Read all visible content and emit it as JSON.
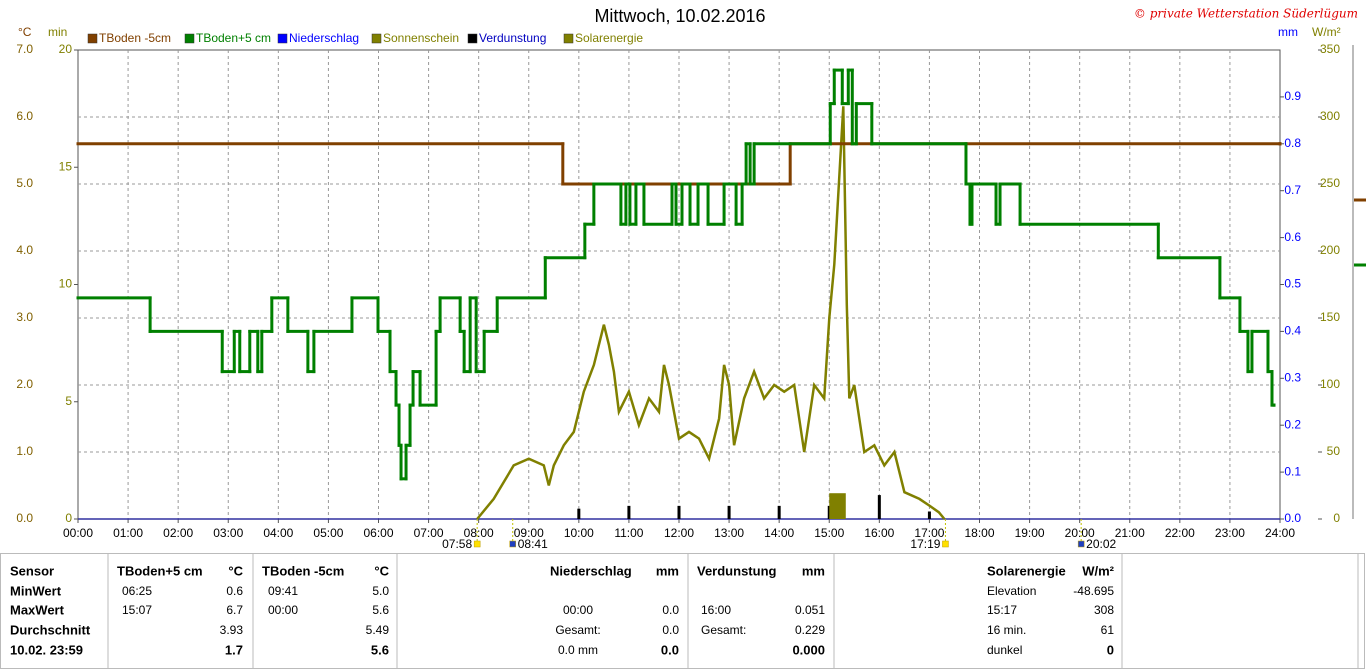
{
  "chart_data": {
    "type": "line",
    "title": "Mittwoch, 10.02.2016",
    "credit": "© private Wetterstation Süderlügum",
    "xlim": [
      0,
      24
    ],
    "xticks": [
      {
        "value": 0,
        "label": "00:00"
      },
      {
        "value": 1,
        "label": "01:00"
      },
      {
        "value": 2,
        "label": "02:00"
      },
      {
        "value": 3,
        "label": "03:00"
      },
      {
        "value": 4,
        "label": "04:00"
      },
      {
        "value": 5,
        "label": "05:00"
      },
      {
        "value": 6,
        "label": "06:00"
      },
      {
        "value": 7,
        "label": "07:00"
      },
      {
        "value": 8,
        "label": "08:00"
      },
      {
        "value": 9,
        "label": "09:00"
      },
      {
        "value": 10,
        "label": "10:00"
      },
      {
        "value": 11,
        "label": "11:00"
      },
      {
        "value": 12,
        "label": "12:00"
      },
      {
        "value": 13,
        "label": "13:00"
      },
      {
        "value": 14,
        "label": "14:00"
      },
      {
        "value": 15,
        "label": "15:00"
      },
      {
        "value": 16,
        "label": "16:00"
      },
      {
        "value": 17,
        "label": "17:00"
      },
      {
        "value": 18,
        "label": "18:00"
      },
      {
        "value": 19,
        "label": "19:00"
      },
      {
        "value": 20,
        "label": "20:00"
      },
      {
        "value": 21,
        "label": "21:00"
      },
      {
        "value": 22,
        "label": "22:00"
      },
      {
        "value": 23,
        "label": "23:00"
      },
      {
        "value": 24,
        "label": "24:00"
      }
    ],
    "ylabel": "°C",
    "ylim": [
      0,
      7
    ],
    "yticks": [
      {
        "value": 0,
        "label": "0.0"
      },
      {
        "value": 1,
        "label": "1.0"
      },
      {
        "value": 2,
        "label": "2.0"
      },
      {
        "value": 3,
        "label": "3.0"
      },
      {
        "value": 4,
        "label": "4.0"
      },
      {
        "value": 5,
        "label": "5.0"
      },
      {
        "value": 6,
        "label": "6.0"
      },
      {
        "value": 7,
        "label": "7.0"
      }
    ],
    "y3label": "min",
    "y3lim": [
      0,
      20
    ],
    "y3ticks": [
      0,
      5,
      10,
      15,
      20
    ],
    "y2label": "mm",
    "y2lim": [
      0,
      1
    ],
    "y2ticks": [
      {
        "value": 0,
        "label": "0.0"
      },
      0.1,
      0.2,
      0.3,
      0.4,
      0.5,
      0.6,
      0.7,
      0.8,
      0.9
    ],
    "y4label": "W/m²",
    "y4lim": [
      0,
      350
    ],
    "y4ticks": [
      0,
      50,
      100,
      150,
      200,
      250,
      300,
      350
    ],
    "grid": true,
    "series": [
      {
        "name": "TBoden -5cm",
        "color": "#804000",
        "axis": "y",
        "style": "step",
        "x": [
          0,
          9.68,
          14.22,
          24
        ],
        "values": [
          5.6,
          5.0,
          5.6,
          5.6
        ]
      },
      {
        "name": "TBoden+5 cm",
        "color": "#008000",
        "axis": "y",
        "style": "step",
        "x": [
          0,
          1.44,
          2.88,
          3.12,
          3.23,
          3.43,
          3.59,
          3.67,
          3.87,
          4.19,
          4.59,
          4.71,
          5.47,
          5.99,
          6.23,
          6.35,
          6.41,
          6.45,
          6.55,
          6.63,
          6.69,
          6.83,
          7.15,
          7.23,
          7.63,
          7.71,
          7.83,
          7.95,
          8.11,
          8.37,
          9.33,
          10.12,
          10.3,
          10.84,
          10.94,
          11.02,
          11.14,
          11.3,
          11.86,
          11.94,
          12.06,
          12.22,
          12.38,
          12.58,
          12.9,
          13.14,
          13.26,
          13.34,
          13.42,
          13.5,
          15.02,
          15.1,
          15.26,
          15.38,
          15.46,
          15.54,
          15.85,
          17.73,
          17.81,
          17.85,
          18.33,
          18.41,
          18.81,
          21.57,
          22.8,
          23.2,
          23.36,
          23.44,
          23.76,
          23.84,
          23.88
        ],
        "values": [
          3.3,
          2.8,
          2.2,
          2.8,
          2.2,
          2.8,
          2.2,
          2.8,
          3.3,
          2.8,
          2.2,
          2.8,
          3.3,
          2.8,
          2.2,
          1.7,
          1.1,
          0.6,
          1.1,
          1.7,
          2.2,
          1.7,
          2.8,
          3.3,
          2.8,
          2.2,
          3.3,
          2.2,
          2.8,
          3.3,
          3.9,
          4.4,
          5.0,
          4.4,
          5.0,
          4.4,
          5.0,
          4.4,
          5.0,
          4.4,
          5.0,
          4.4,
          5.0,
          4.4,
          5.0,
          4.4,
          5.0,
          5.6,
          5.0,
          5.6,
          6.2,
          6.7,
          6.2,
          6.7,
          5.6,
          6.2,
          5.6,
          5.0,
          4.4,
          5.0,
          4.4,
          5.0,
          4.4,
          3.9,
          3.3,
          2.8,
          2.2,
          2.8,
          2.2,
          1.7,
          1.7
        ]
      },
      {
        "name": "Niederschlag",
        "color": "#0000ff",
        "axis": "y2",
        "style": "bar",
        "x": [],
        "values": []
      },
      {
        "name": "Sonnenschein",
        "color": "#808000",
        "axis": "y3",
        "style": "hist",
        "bins": [
          15.0,
          15.33
        ],
        "values": [
          1.1
        ]
      },
      {
        "name": "Verdunstung",
        "color": "#000000",
        "axis": "y2",
        "style": "bar",
        "x": [
          10,
          11,
          12,
          13,
          14,
          15,
          16,
          17
        ],
        "values": [
          0.022,
          0.028,
          0.028,
          0.028,
          0.028,
          0.028,
          0.051,
          0.016
        ]
      },
      {
        "name": "Solarenergie",
        "color": "#808000",
        "axis": "y4",
        "style": "line",
        "x": [
          7.97,
          8.3,
          8.7,
          9.0,
          9.3,
          9.4,
          9.5,
          9.7,
          9.9,
          10.1,
          10.3,
          10.4,
          10.5,
          10.6,
          10.7,
          10.8,
          11.0,
          11.2,
          11.4,
          11.6,
          11.7,
          11.8,
          12.0,
          12.2,
          12.4,
          12.6,
          12.8,
          12.9,
          13.0,
          13.1,
          13.3,
          13.5,
          13.7,
          13.9,
          14.1,
          14.3,
          14.5,
          14.7,
          14.9,
          15.0,
          15.1,
          15.28,
          15.35,
          15.4,
          15.5,
          15.7,
          15.9,
          16.1,
          16.3,
          16.5,
          16.8,
          17.0,
          17.19,
          17.3
        ],
        "values": [
          0,
          15,
          40,
          45,
          40,
          25,
          40,
          55,
          65,
          95,
          115,
          130,
          145,
          130,
          110,
          80,
          95,
          70,
          90,
          80,
          115,
          100,
          60,
          65,
          60,
          45,
          75,
          115,
          100,
          55,
          90,
          110,
          90,
          100,
          95,
          100,
          50,
          100,
          90,
          150,
          190,
          308,
          160,
          90,
          100,
          50,
          55,
          40,
          50,
          20,
          15,
          10,
          5,
          0
        ]
      }
    ],
    "annotations": [
      {
        "x": 7.97,
        "label": "07:58"
      },
      {
        "x": 8.68,
        "label": "08:41"
      },
      {
        "x": 17.32,
        "label": "17:19"
      },
      {
        "x": 20.03,
        "label": "20:02"
      }
    ]
  },
  "table": {
    "groups": [
      {
        "header": [
          "Sensor"
        ],
        "rows": [
          [
            "MinWert"
          ],
          [
            "MaxWert"
          ],
          [
            "Durchschnitt"
          ],
          [
            "10.02. 23:59"
          ]
        ]
      },
      {
        "header": [
          "TBoden+5 cm",
          "°C"
        ],
        "rows": [
          [
            "06:25",
            "0.6"
          ],
          [
            "15:07",
            "6.7"
          ],
          [
            null,
            "3.93"
          ],
          [
            null,
            "1.7"
          ]
        ]
      },
      {
        "header": [
          "TBoden -5cm",
          "°C"
        ],
        "rows": [
          [
            "09:41",
            "5.0"
          ],
          [
            "00:00",
            "5.6"
          ],
          [
            null,
            "5.49"
          ],
          [
            null,
            "5.6"
          ]
        ]
      },
      {
        "header": [
          "Niederschlag",
          "mm"
        ],
        "rows": [
          [
            null,
            null
          ],
          [
            "00:00",
            "0.0"
          ],
          [
            "Gesamt:",
            "0.0"
          ],
          [
            "0.0 mm",
            "0.0"
          ]
        ]
      },
      {
        "header": [
          "Verdunstung",
          "mm"
        ],
        "rows": [
          [
            null,
            null
          ],
          [
            "16:00",
            "0.051"
          ],
          [
            "Gesamt:",
            "0.229"
          ],
          [
            null,
            "0.000"
          ]
        ]
      },
      {
        "header": [
          "Solarenergie",
          "W/m²"
        ],
        "rows": [
          [
            "Elevation",
            "-48.695"
          ],
          [
            "15:17",
            "308"
          ],
          [
            "16 min.",
            "61"
          ],
          [
            "dunkel",
            "0"
          ]
        ]
      }
    ]
  }
}
